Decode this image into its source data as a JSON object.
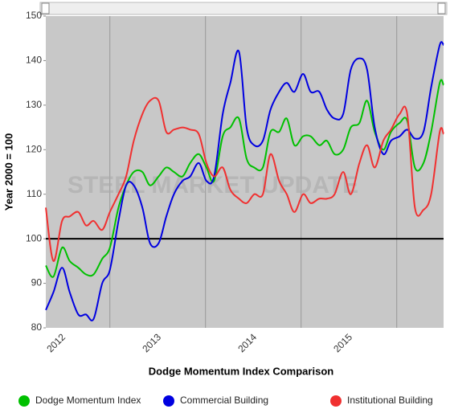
{
  "chart_data": {
    "type": "line",
    "title": "Dodge Momentum Index Comparison",
    "y_label": "Year 2000 = 100",
    "watermark": "STEEL MARKET UPDATE",
    "reference_line": 100,
    "x": [
      2011.33,
      2011.41,
      2011.5,
      2011.58,
      2011.67,
      2011.75,
      2011.83,
      2011.92,
      2012.0,
      2012.09,
      2012.17,
      2012.25,
      2012.34,
      2012.42,
      2012.51,
      2012.59,
      2012.67,
      2012.76,
      2012.84,
      2012.93,
      2013.01,
      2013.09,
      2013.18,
      2013.26,
      2013.35,
      2013.43,
      2013.51,
      2013.6,
      2013.68,
      2013.77,
      2013.85,
      2013.93,
      2014.02,
      2014.1,
      2014.19,
      2014.27,
      2014.35,
      2014.44,
      2014.52,
      2014.61,
      2014.69,
      2014.77,
      2014.86,
      2014.94,
      2015.03,
      2015.11,
      2015.19,
      2015.28,
      2015.36,
      2015.45,
      2015.49
    ],
    "series": [
      {
        "name": "Dodge Momentum Index",
        "color": "#00c000",
        "values": [
          94,
          91.5,
          98,
          95,
          93.5,
          92,
          92,
          95.5,
          98,
          107,
          112,
          115,
          115,
          112,
          114,
          116,
          115,
          114,
          117,
          119,
          116,
          113,
          123,
          125,
          127,
          118,
          116,
          116,
          124,
          124,
          127,
          121,
          123,
          123,
          121,
          122,
          119,
          120,
          125,
          126,
          131,
          124,
          120,
          124,
          126,
          126.5,
          116,
          117,
          124,
          135,
          134.5
        ]
      },
      {
        "name": "Commercial Building",
        "color": "#0000e0",
        "values": [
          84,
          88,
          93.5,
          88,
          83,
          83,
          82,
          90,
          93,
          104,
          112,
          112,
          107,
          99,
          99,
          105,
          110,
          113,
          114,
          117,
          113,
          114,
          128,
          135,
          142,
          125,
          121,
          122,
          129,
          133,
          135,
          133,
          137,
          133,
          133,
          129,
          127,
          128,
          138,
          140.5,
          138,
          125,
          119,
          122,
          123,
          124.5,
          122.5,
          124,
          134,
          143.5,
          143.5
        ]
      },
      {
        "name": "Institutional Building",
        "color": "#f03030",
        "values": [
          107,
          95,
          104,
          105,
          106,
          103,
          104,
          102,
          106,
          110,
          114,
          122,
          128,
          131,
          131,
          124,
          124.5,
          125,
          124.5,
          123.5,
          117,
          114,
          116,
          111,
          109,
          108,
          110,
          110,
          119,
          113,
          110,
          106,
          110,
          108,
          109,
          109,
          110,
          115,
          110,
          117,
          121,
          116,
          122,
          124.5,
          128,
          128,
          107,
          106.5,
          110,
          124,
          123.5
        ]
      }
    ],
    "xlim": [
      2011.33,
      2015.49
    ],
    "xticks": [
      2012,
      2013,
      2014,
      2015
    ],
    "ylim": [
      80,
      150
    ],
    "yticks": [
      80,
      90,
      100,
      110,
      120,
      130,
      140,
      150
    ],
    "grid": true,
    "legend": "bottom"
  }
}
